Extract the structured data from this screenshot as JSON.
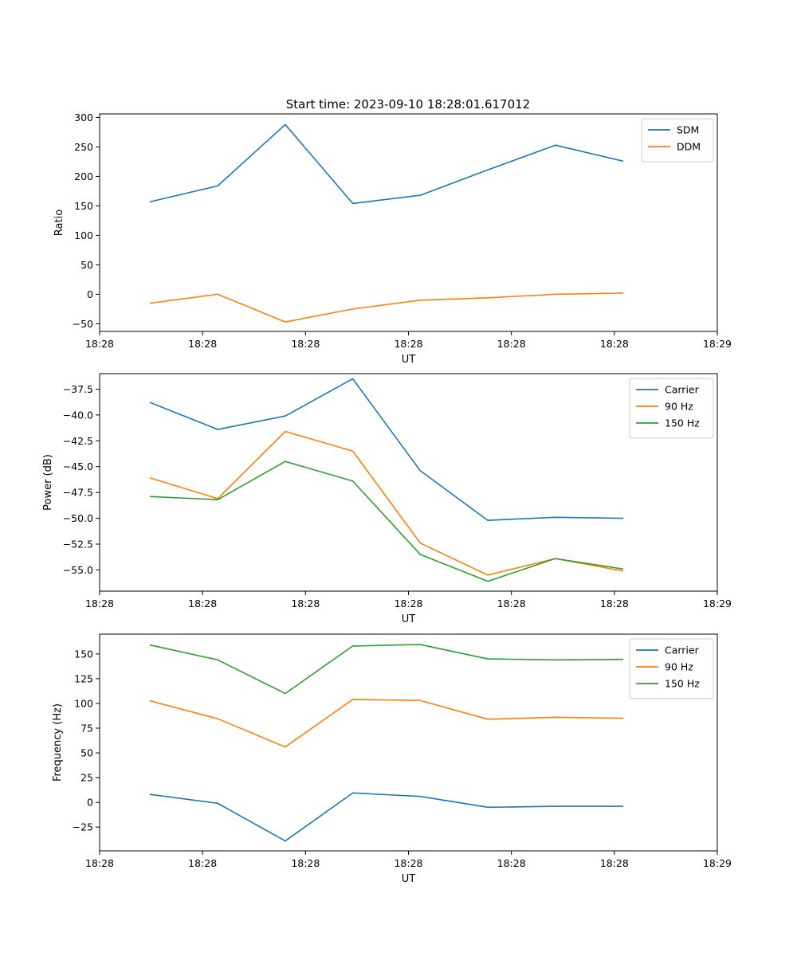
{
  "figure_title": "Start time: 2023-09-10 18:28:01.617012",
  "chart_data": [
    {
      "type": "line",
      "title": "Start time: 2023-09-10 18:28:01.617012",
      "xlabel": "UT",
      "ylabel": "Ratio",
      "x": [
        0,
        1,
        2,
        3,
        4,
        5,
        6,
        7
      ],
      "xlim": [
        -0.75,
        8.4
      ],
      "xticks": [
        -0.75,
        0.775,
        2.3,
        3.825,
        5.35,
        6.875,
        8.4
      ],
      "xtick_labels": [
        "18:28",
        "18:28",
        "18:28",
        "18:28",
        "18:28",
        "18:28",
        "18:29"
      ],
      "ylim": [
        -63,
        306
      ],
      "yticks": [
        -50,
        0,
        50,
        100,
        150,
        200,
        250,
        300
      ],
      "ytick_labels": [
        "−50",
        "0",
        "50",
        "100",
        "150",
        "200",
        "250",
        "300"
      ],
      "legend_position": "top-right",
      "series": [
        {
          "name": "SDM",
          "color": "#1f77b4",
          "values": [
            157,
            184,
            288,
            154,
            168,
            211,
            253,
            226
          ]
        },
        {
          "name": "DDM",
          "color": "#ff7f0e",
          "values": [
            -15,
            0,
            -47,
            -25,
            -10,
            -6,
            0,
            2
          ]
        }
      ]
    },
    {
      "type": "line",
      "title": "",
      "xlabel": "UT",
      "ylabel": "Power (dB)",
      "x": [
        0,
        1,
        2,
        3,
        4,
        5,
        6,
        7
      ],
      "xlim": [
        -0.75,
        8.4
      ],
      "xticks": [
        -0.75,
        0.775,
        2.3,
        3.825,
        5.35,
        6.875,
        8.4
      ],
      "xtick_labels": [
        "18:28",
        "18:28",
        "18:28",
        "18:28",
        "18:28",
        "18:28",
        "18:29"
      ],
      "ylim": [
        -57.05,
        -36.0
      ],
      "yticks": [
        -55.0,
        -52.5,
        -50.0,
        -47.5,
        -45.0,
        -42.5,
        -40.0,
        -37.5
      ],
      "ytick_labels": [
        "−55.0",
        "−52.5",
        "−50.0",
        "−47.5",
        "−45.0",
        "−42.5",
        "−40.0",
        "−37.5"
      ],
      "legend_position": "top-right",
      "series": [
        {
          "name": "Carrier",
          "color": "#1f77b4",
          "values": [
            -38.8,
            -41.4,
            -40.1,
            -36.5,
            -45.4,
            -50.2,
            -49.9,
            -50.0
          ]
        },
        {
          "name": "90 Hz",
          "color": "#ff7f0e",
          "values": [
            -46.1,
            -48.1,
            -41.6,
            -43.5,
            -52.4,
            -55.5,
            -53.9,
            -55.1
          ]
        },
        {
          "name": "150 Hz",
          "color": "#2ca02c",
          "values": [
            -47.9,
            -48.2,
            -44.5,
            -46.4,
            -53.5,
            -56.1,
            -53.9,
            -54.9
          ]
        }
      ]
    },
    {
      "type": "line",
      "title": "",
      "xlabel": "UT",
      "ylabel": "Frequency (Hz)",
      "x": [
        0,
        1,
        2,
        3,
        4,
        5,
        6,
        7
      ],
      "xlim": [
        -0.75,
        8.4
      ],
      "xticks": [
        -0.75,
        0.775,
        2.3,
        3.825,
        5.35,
        6.875,
        8.4
      ],
      "xtick_labels": [
        "18:28",
        "18:28",
        "18:28",
        "18:28",
        "18:28",
        "18:28",
        "18:29"
      ],
      "ylim": [
        -49,
        170
      ],
      "yticks": [
        -25,
        0,
        25,
        50,
        75,
        100,
        125,
        150
      ],
      "ytick_labels": [
        "−25",
        "0",
        "25",
        "50",
        "75",
        "100",
        "125",
        "150"
      ],
      "legend_position": "top-right",
      "series": [
        {
          "name": "Carrier",
          "color": "#1f77b4",
          "values": [
            8,
            -1,
            -39,
            9.5,
            6,
            -5,
            -4,
            -4
          ]
        },
        {
          "name": "90 Hz",
          "color": "#ff7f0e",
          "values": [
            102.5,
            84.5,
            56,
            104,
            103,
            84,
            86,
            85
          ]
        },
        {
          "name": "150 Hz",
          "color": "#2ca02c",
          "values": [
            159,
            144,
            110,
            158,
            159.5,
            145,
            144,
            144.5
          ]
        }
      ]
    }
  ]
}
